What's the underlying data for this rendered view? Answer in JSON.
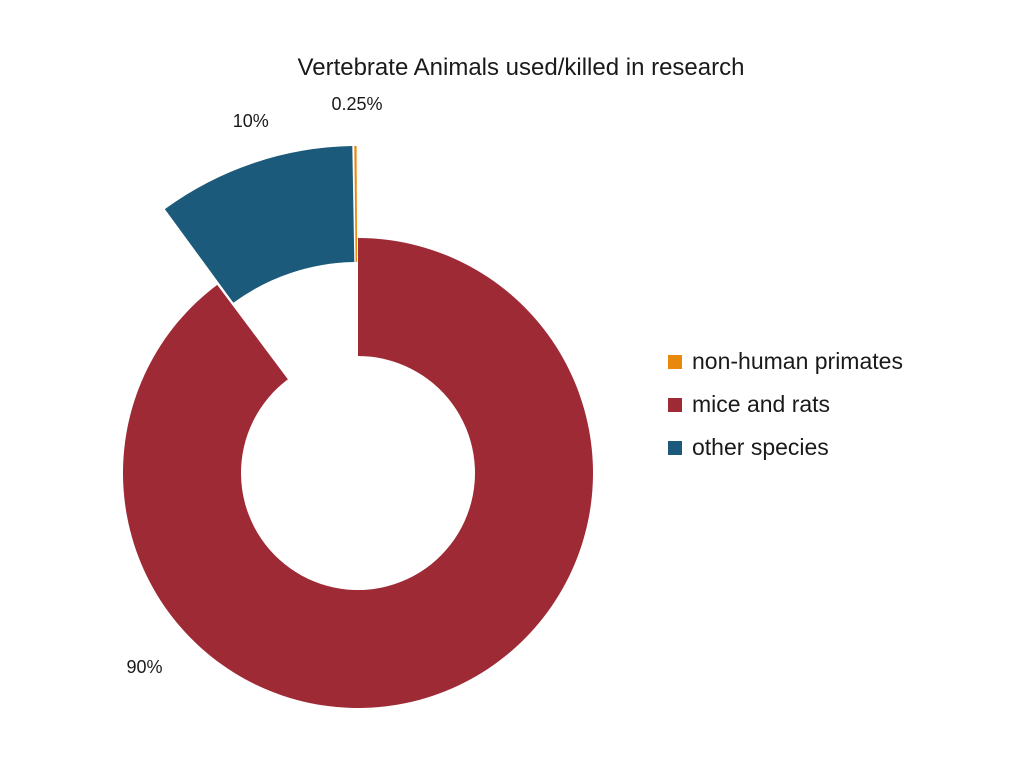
{
  "chart_data": {
    "type": "pie",
    "title": "Vertebrate Animals used/killed in research",
    "donut": true,
    "slices": [
      {
        "label": "non-human primates",
        "value": 0.25,
        "display": "0.25%",
        "color": "#E8890C",
        "exploded": true
      },
      {
        "label": "mice and rats",
        "value": 90,
        "display": "90%",
        "color": "#9E2A36",
        "exploded": false
      },
      {
        "label": "other species",
        "value": 10,
        "display": "10%",
        "color": "#1B5A7A",
        "exploded": true
      }
    ],
    "legend": {
      "position": "right",
      "order": [
        "non-human primates",
        "mice and rats",
        "other species"
      ]
    }
  }
}
